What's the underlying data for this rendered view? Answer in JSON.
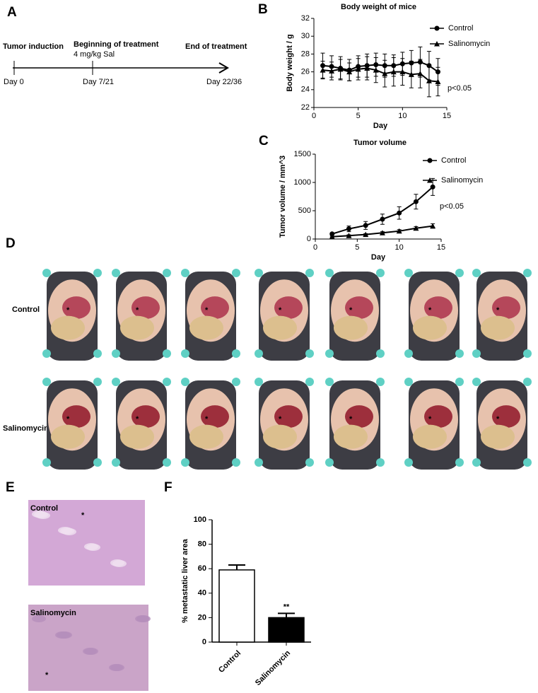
{
  "panel_labels": [
    "A",
    "B",
    "C",
    "D",
    "E",
    "F"
  ],
  "timeline": {
    "events": [
      {
        "title": "Tumor induction",
        "day": "Day 0"
      },
      {
        "title": "Beginning of treatment",
        "detail": "4 mg/kg Sal",
        "day": "Day 7/21"
      },
      {
        "title": "End of treatment",
        "day": "Day 22/36"
      }
    ]
  },
  "chart_data": [
    {
      "type": "line",
      "title": "Body weight of mice",
      "xlabel": "Day",
      "ylabel": "Body weight / g",
      "x": [
        1,
        2,
        3,
        4,
        5,
        6,
        7,
        8,
        9,
        10,
        11,
        12,
        13,
        14
      ],
      "series": [
        {
          "name": "Control",
          "color": "#000000",
          "marker": "circle",
          "values": [
            26.7,
            26.6,
            26.4,
            26.2,
            26.6,
            26.7,
            26.8,
            26.7,
            26.7,
            26.9,
            27.0,
            27.1,
            26.7,
            26.0
          ],
          "errors": [
            1.4,
            1.2,
            1.3,
            1.2,
            1.2,
            1.3,
            1.3,
            1.3,
            1.2,
            1.3,
            1.4,
            1.7,
            1.6,
            1.5
          ]
        },
        {
          "name": "Salinomycin",
          "color": "#000000",
          "marker": "triangle",
          "values": [
            26.2,
            26.1,
            26.3,
            26.0,
            26.3,
            26.4,
            26.2,
            25.8,
            26.0,
            26.0,
            25.7,
            25.8,
            25.0,
            24.9
          ],
          "errors": [
            1.0,
            1.0,
            1.1,
            1.0,
            1.2,
            1.3,
            1.4,
            1.5,
            1.6,
            1.5,
            1.5,
            1.6,
            1.8,
            1.6
          ]
        }
      ],
      "xlim": [
        0,
        15
      ],
      "xticks": [
        0,
        5,
        10,
        15
      ],
      "ylim": [
        22,
        32
      ],
      "yticks": [
        22,
        24,
        26,
        28,
        30,
        32
      ],
      "annotation": "p<0.05"
    },
    {
      "type": "line",
      "title": "Tumor volume",
      "xlabel": "Day",
      "ylabel": "Tumor volume / mm^3",
      "x": [
        2,
        4,
        6,
        8,
        10,
        12,
        14
      ],
      "series": [
        {
          "name": "Control",
          "color": "#000000",
          "marker": "circle",
          "values": [
            90,
            180,
            240,
            350,
            460,
            660,
            920
          ],
          "errors": [
            20,
            50,
            70,
            90,
            110,
            130,
            150
          ]
        },
        {
          "name": "Salinomycin",
          "color": "#000000",
          "marker": "triangle",
          "values": [
            40,
            60,
            80,
            110,
            140,
            190,
            230
          ],
          "errors": [
            10,
            15,
            15,
            20,
            25,
            30,
            40
          ]
        }
      ],
      "xlim": [
        0,
        15
      ],
      "xticks": [
        0,
        5,
        10,
        15
      ],
      "ylim": [
        0,
        1500
      ],
      "yticks": [
        0,
        500,
        1000,
        1500
      ],
      "annotation": "p<0.05"
    },
    {
      "type": "bar",
      "ylabel": "% metastatic liver area",
      "categories": [
        "Control",
        "Salinomycin"
      ],
      "values": [
        59,
        20
      ],
      "errors": [
        4,
        3.5
      ],
      "colors": [
        "#ffffff",
        "#000000"
      ],
      "ylim": [
        0,
        100
      ],
      "yticks": [
        0,
        20,
        40,
        60,
        80,
        100
      ],
      "annotation": "**"
    }
  ],
  "photos": {
    "rows": [
      "Control",
      "Salinomycin"
    ],
    "marker": "*"
  },
  "histology": {
    "panels": [
      "Control",
      "Salinomycin"
    ],
    "marker": "*"
  }
}
